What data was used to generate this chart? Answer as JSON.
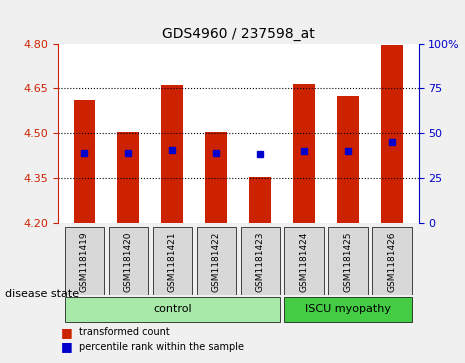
{
  "title": "GDS4960 / 237598_at",
  "samples": [
    "GSM1181419",
    "GSM1181420",
    "GSM1181421",
    "GSM1181422",
    "GSM1181423",
    "GSM1181424",
    "GSM1181425",
    "GSM1181426"
  ],
  "bar_values": [
    4.61,
    4.505,
    4.66,
    4.505,
    4.355,
    4.665,
    4.625,
    4.795
  ],
  "bar_bottom": 4.2,
  "blue_dot_values": [
    4.435,
    4.435,
    4.445,
    4.435,
    4.43,
    4.44,
    4.44,
    4.47
  ],
  "ylim": [
    4.2,
    4.8
  ],
  "yticks_left": [
    4.2,
    4.35,
    4.5,
    4.65,
    4.8
  ],
  "yticks_right": [
    0,
    25,
    50,
    75,
    100
  ],
  "bar_color": "#cc2200",
  "dot_color": "#0000cc",
  "bg_color": "#f0f0f0",
  "plot_bg": "#ffffff",
  "control_color": "#a8e8a8",
  "iscu_color": "#44cc44",
  "control_label": "control",
  "iscu_label": "ISCU myopathy",
  "disease_state_label": "disease state",
  "legend_bar_label": "transformed count",
  "legend_dot_label": "percentile rank within the sample",
  "grid_yticks": [
    4.35,
    4.5,
    4.65
  ],
  "n_control": 5,
  "n_iscu": 3
}
